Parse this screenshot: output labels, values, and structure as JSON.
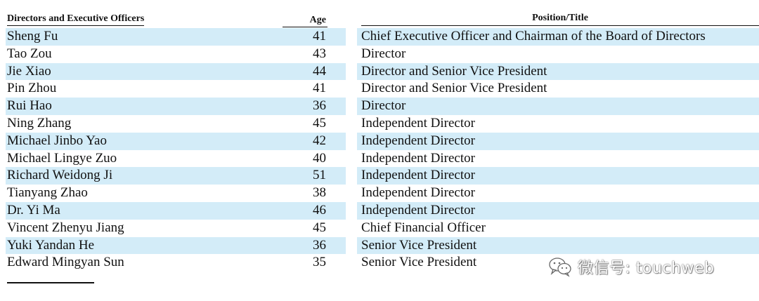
{
  "table": {
    "headers": {
      "name": "Directors and Executive Officers",
      "age": "Age",
      "position": "Position/Title"
    },
    "rows": [
      {
        "name": "Sheng Fu",
        "age": "41",
        "position": "Chief Executive Officer and Chairman of the Board of Directors"
      },
      {
        "name": "Tao Zou",
        "age": "43",
        "position": "Director"
      },
      {
        "name": "Jie Xiao",
        "age": "44",
        "position": "Director and Senior Vice President"
      },
      {
        "name": "Pin Zhou",
        "age": "41",
        "position": "Director and Senior Vice President"
      },
      {
        "name": "Rui Hao",
        "age": "36",
        "position": "Director"
      },
      {
        "name": "Ning Zhang",
        "age": "45",
        "position": "Independent Director"
      },
      {
        "name": "Michael Jinbo Yao",
        "age": "42",
        "position": "Independent Director"
      },
      {
        "name": "Michael Lingye Zuo",
        "age": "40",
        "position": "Independent Director"
      },
      {
        "name": "Richard Weidong Ji",
        "age": "51",
        "position": "Independent Director"
      },
      {
        "name": "Tianyang Zhao",
        "age": "38",
        "position": "Independent Director"
      },
      {
        "name": "Dr. Yi Ma",
        "age": "46",
        "position": "Independent Director"
      },
      {
        "name": "Vincent Zhenyu Jiang",
        "age": "45",
        "position": "Chief Financial Officer"
      },
      {
        "name": "Yuki Yandan He",
        "age": "36",
        "position": "Senior Vice President"
      },
      {
        "name": "Edward Mingyan Sun",
        "age": "35",
        "position": "Senior Vice President"
      }
    ]
  },
  "watermark": {
    "text": "微信号: touchweb",
    "icon": "wechat-icon"
  },
  "colors": {
    "row_shade": "#d3ecf8",
    "text": "#111111"
  }
}
